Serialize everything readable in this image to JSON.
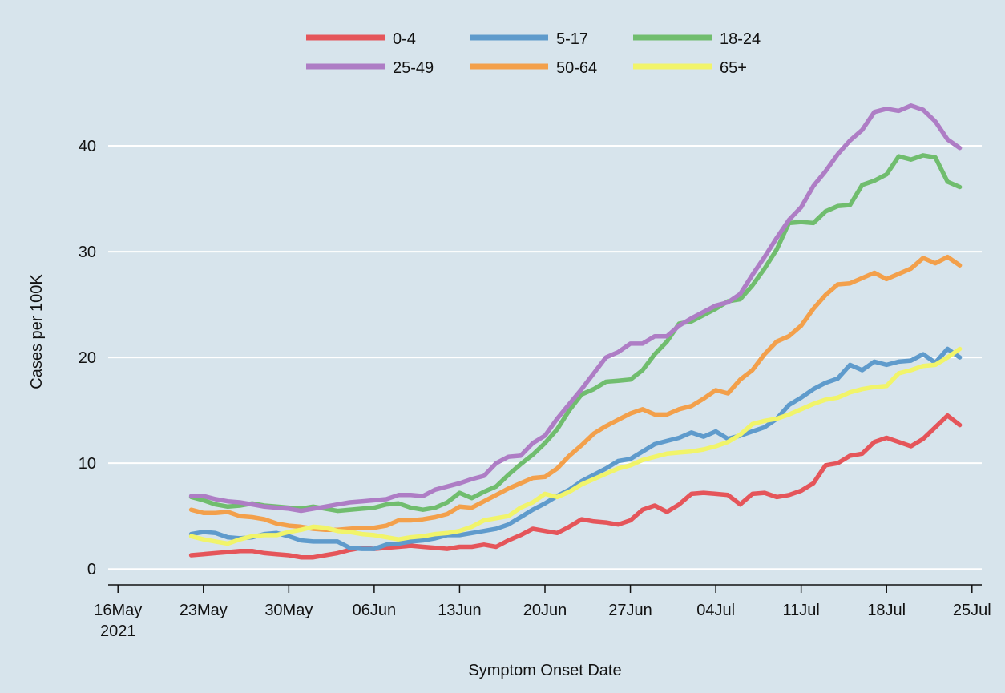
{
  "chart_data": {
    "type": "line",
    "x_label": "Symptom Onset Date",
    "y_label": "Cases per 100K",
    "x": [
      "2021-05-22",
      "2021-05-23",
      "2021-05-24",
      "2021-05-25",
      "2021-05-26",
      "2021-05-27",
      "2021-05-28",
      "2021-05-29",
      "2021-05-30",
      "2021-05-31",
      "2021-06-01",
      "2021-06-02",
      "2021-06-03",
      "2021-06-04",
      "2021-06-05",
      "2021-06-06",
      "2021-06-07",
      "2021-06-08",
      "2021-06-09",
      "2021-06-10",
      "2021-06-11",
      "2021-06-12",
      "2021-06-13",
      "2021-06-14",
      "2021-06-15",
      "2021-06-16",
      "2021-06-17",
      "2021-06-18",
      "2021-06-19",
      "2021-06-20",
      "2021-06-21",
      "2021-06-22",
      "2021-06-23",
      "2021-06-24",
      "2021-06-25",
      "2021-06-26",
      "2021-06-27",
      "2021-06-28",
      "2021-06-29",
      "2021-06-30",
      "2021-07-01",
      "2021-07-02",
      "2021-07-03",
      "2021-07-04",
      "2021-07-05",
      "2021-07-06",
      "2021-07-07",
      "2021-07-08",
      "2021-07-09",
      "2021-07-10",
      "2021-07-11",
      "2021-07-12",
      "2021-07-13",
      "2021-07-14",
      "2021-07-15",
      "2021-07-16",
      "2021-07-17",
      "2021-07-18",
      "2021-07-19",
      "2021-07-20",
      "2021-07-21",
      "2021-07-22",
      "2021-07-23",
      "2021-07-24"
    ],
    "series": [
      {
        "name": "0-4",
        "color": "#e5555a",
        "values": [
          1.3,
          1.4,
          1.5,
          1.6,
          1.7,
          1.7,
          1.5,
          1.4,
          1.3,
          1.1,
          1.1,
          1.3,
          1.5,
          1.8,
          2.0,
          1.9,
          2.0,
          2.1,
          2.2,
          2.1,
          2.0,
          1.9,
          2.1,
          2.1,
          2.3,
          2.1,
          2.7,
          3.2,
          3.8,
          3.6,
          3.4,
          4.0,
          4.7,
          4.5,
          4.4,
          4.2,
          4.6,
          5.6,
          6.0,
          5.4,
          6.1,
          7.1,
          7.2,
          7.1,
          7.0,
          6.1,
          7.1,
          7.2,
          6.8,
          7.0,
          7.4,
          8.1,
          9.8,
          10.0,
          10.7,
          10.9,
          12.0,
          12.4,
          12.0,
          11.6,
          12.3,
          13.4,
          14.5,
          13.6
        ]
      },
      {
        "name": "5-17",
        "color": "#5f9bcc",
        "values": [
          3.3,
          3.5,
          3.4,
          3.0,
          2.9,
          3.0,
          3.3,
          3.4,
          3.1,
          2.7,
          2.6,
          2.6,
          2.6,
          2.0,
          1.9,
          1.9,
          2.3,
          2.4,
          2.6,
          2.7,
          2.9,
          3.2,
          3.2,
          3.4,
          3.6,
          3.8,
          4.2,
          4.9,
          5.6,
          6.2,
          6.9,
          7.5,
          8.3,
          8.9,
          9.5,
          10.2,
          10.4,
          11.1,
          11.8,
          12.1,
          12.4,
          12.9,
          12.5,
          13.0,
          12.3,
          12.6,
          13.0,
          13.4,
          14.2,
          15.5,
          16.2,
          17.0,
          17.6,
          18.0,
          19.3,
          18.8,
          19.6,
          19.3,
          19.6,
          19.7,
          20.3,
          19.5,
          20.8,
          20.0
        ]
      },
      {
        "name": "18-24",
        "color": "#70bd6e",
        "values": [
          6.8,
          6.5,
          6.1,
          5.9,
          6.0,
          6.2,
          6.0,
          5.9,
          5.8,
          5.7,
          5.9,
          5.7,
          5.5,
          5.6,
          5.7,
          5.8,
          6.1,
          6.2,
          5.8,
          5.6,
          5.8,
          6.3,
          7.2,
          6.7,
          7.3,
          7.8,
          8.9,
          9.9,
          10.8,
          11.9,
          13.2,
          15.0,
          16.5,
          17.0,
          17.7,
          17.8,
          17.9,
          18.8,
          20.3,
          21.5,
          23.2,
          23.4,
          24.0,
          24.6,
          25.3,
          25.5,
          26.8,
          28.4,
          30.2,
          32.7,
          32.8,
          32.7,
          33.8,
          34.3,
          34.4,
          36.3,
          36.7,
          37.3,
          39.0,
          38.7,
          39.1,
          38.9,
          36.6,
          36.1
        ]
      },
      {
        "name": "25-49",
        "color": "#ae7dc5",
        "values": [
          6.9,
          6.9,
          6.6,
          6.4,
          6.3,
          6.1,
          5.9,
          5.8,
          5.7,
          5.5,
          5.7,
          5.9,
          6.1,
          6.3,
          6.4,
          6.5,
          6.6,
          7.0,
          7.0,
          6.9,
          7.5,
          7.8,
          8.1,
          8.5,
          8.8,
          10.0,
          10.6,
          10.7,
          11.9,
          12.6,
          14.2,
          15.6,
          17.0,
          18.5,
          20.0,
          20.5,
          21.3,
          21.3,
          22.0,
          22.0,
          23.0,
          23.7,
          24.3,
          24.9,
          25.2,
          26.0,
          27.8,
          29.5,
          31.3,
          33.0,
          34.2,
          36.2,
          37.6,
          39.2,
          40.5,
          41.5,
          43.2,
          43.5,
          43.3,
          43.8,
          43.4,
          42.3,
          40.6,
          39.8
        ]
      },
      {
        "name": "50-64",
        "color": "#f3a04b",
        "values": [
          5.6,
          5.3,
          5.3,
          5.4,
          5.0,
          4.9,
          4.7,
          4.3,
          4.1,
          4.0,
          3.8,
          3.7,
          3.7,
          3.8,
          3.9,
          3.9,
          4.1,
          4.6,
          4.6,
          4.7,
          4.9,
          5.2,
          5.9,
          5.8,
          6.4,
          7.0,
          7.6,
          8.1,
          8.6,
          8.7,
          9.5,
          10.7,
          11.7,
          12.8,
          13.5,
          14.1,
          14.7,
          15.1,
          14.6,
          14.6,
          15.1,
          15.4,
          16.1,
          16.9,
          16.6,
          17.9,
          18.8,
          20.3,
          21.5,
          22.0,
          23.0,
          24.6,
          25.9,
          26.9,
          27.0,
          27.5,
          28.0,
          27.4,
          27.9,
          28.4,
          29.4,
          28.9,
          29.5,
          28.7
        ]
      },
      {
        "name": "65+",
        "color": "#f1f46a",
        "values": [
          3.1,
          2.8,
          2.6,
          2.4,
          2.8,
          3.1,
          3.2,
          3.2,
          3.5,
          3.7,
          4.0,
          3.9,
          3.6,
          3.5,
          3.3,
          3.2,
          3.0,
          2.8,
          3.0,
          3.1,
          3.3,
          3.4,
          3.6,
          4.0,
          4.6,
          4.8,
          5.0,
          5.8,
          6.3,
          7.1,
          6.8,
          7.3,
          8.0,
          8.5,
          9.0,
          9.5,
          9.8,
          10.3,
          10.6,
          10.9,
          11.0,
          11.1,
          11.3,
          11.6,
          12.0,
          12.7,
          13.7,
          14.0,
          14.2,
          14.6,
          15.1,
          15.6,
          16.0,
          16.2,
          16.7,
          17.0,
          17.2,
          17.3,
          18.5,
          18.8,
          19.2,
          19.3,
          20.0,
          20.8
        ]
      }
    ],
    "xlim": [
      "2021-05-15",
      "2021-07-26"
    ],
    "xticks": [
      {
        "value": "2021-05-16",
        "label": "16May 2021"
      },
      {
        "value": "2021-05-23",
        "label": "23May"
      },
      {
        "value": "2021-05-30",
        "label": "30May"
      },
      {
        "value": "2021-06-06",
        "label": "06Jun"
      },
      {
        "value": "2021-06-13",
        "label": "13Jun"
      },
      {
        "value": "2021-06-20",
        "label": "20Jun"
      },
      {
        "value": "2021-06-27",
        "label": "27Jun"
      },
      {
        "value": "2021-07-04",
        "label": "04Jul"
      },
      {
        "value": "2021-07-11",
        "label": "11Jul"
      },
      {
        "value": "2021-07-18",
        "label": "18Jul"
      },
      {
        "value": "2021-07-25",
        "label": "25Jul"
      }
    ],
    "ylim": [
      -1.5,
      45
    ],
    "yticks": [
      0,
      10,
      20,
      30,
      40
    ],
    "grid": true,
    "legend": "top"
  }
}
